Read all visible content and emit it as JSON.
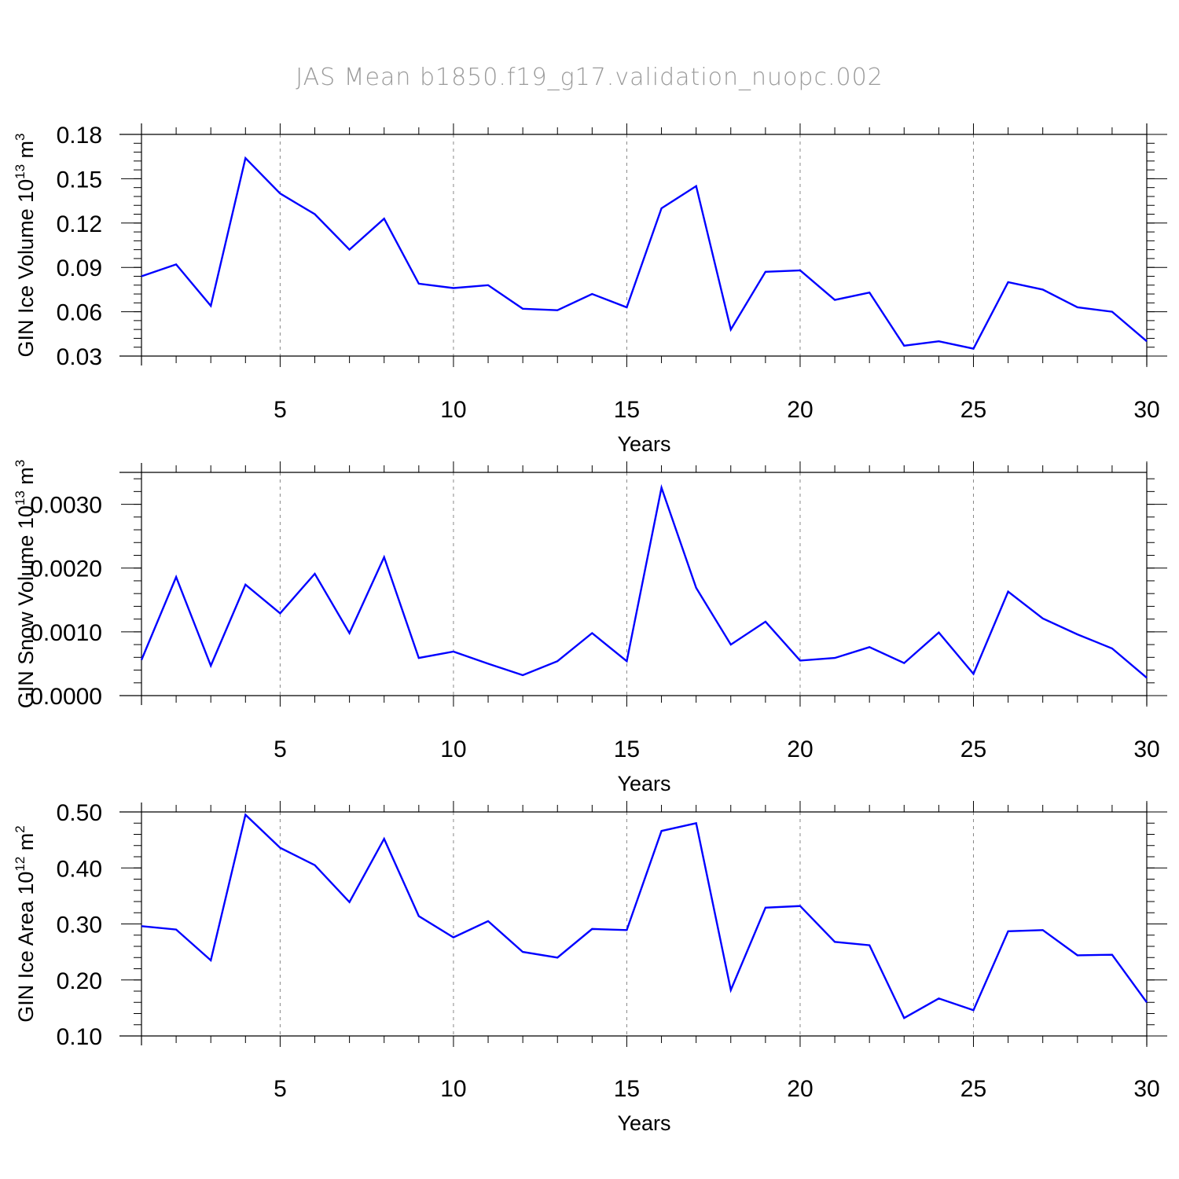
{
  "title": "JAS Mean b1850.f19_g17.validation_nuopc.002",
  "colors": {
    "line": "#0000ff",
    "axis": "#000000",
    "grid": "#888888",
    "title": "#9a9a9a"
  },
  "chart_data": [
    {
      "type": "line",
      "xlabel": "Years",
      "ylabel": {
        "text": "GIN Ice Volume 10",
        "sup": "13",
        "unit": " m",
        "unit_sup": "3"
      },
      "ylim": [
        0.03,
        0.18
      ],
      "yticks": [
        "0.03",
        "0.06",
        "0.09",
        "0.12",
        "0.15",
        "0.18"
      ],
      "ytick_values": [
        0.03,
        0.06,
        0.09,
        0.12,
        0.15,
        0.18
      ],
      "xlim": [
        1,
        30
      ],
      "xticks": [
        "5",
        "10",
        "15",
        "20",
        "25",
        "30"
      ],
      "xtick_values": [
        5,
        10,
        15,
        20,
        25,
        30
      ],
      "grid": "vertical dashed at major x ticks",
      "x": [
        1,
        2,
        3,
        4,
        5,
        6,
        7,
        8,
        9,
        10,
        11,
        12,
        13,
        14,
        15,
        16,
        17,
        18,
        19,
        20,
        21,
        22,
        23,
        24,
        25,
        26,
        27,
        28,
        29,
        30
      ],
      "series": [
        {
          "values": [
            0.084,
            0.092,
            0.064,
            0.164,
            0.14,
            0.126,
            0.102,
            0.123,
            0.079,
            0.076,
            0.078,
            0.062,
            0.061,
            0.072,
            0.063,
            0.13,
            0.145,
            0.048,
            0.087,
            0.088,
            0.068,
            0.073,
            0.037,
            0.04,
            0.035,
            0.08,
            0.075,
            0.063,
            0.06,
            0.04
          ]
        }
      ]
    },
    {
      "type": "line",
      "xlabel": "Years",
      "ylabel": {
        "text": "GIN Snow Volume 10",
        "sup": "13",
        "unit": " m",
        "unit_sup": "3"
      },
      "ylim": [
        0.0,
        0.0035
      ],
      "yticks": [
        "0.0000",
        "0.0010",
        "0.0020",
        "0.0030"
      ],
      "ytick_values": [
        0.0,
        0.001,
        0.002,
        0.003
      ],
      "xlim": [
        1,
        30
      ],
      "xticks": [
        "5",
        "10",
        "15",
        "20",
        "25",
        "30"
      ],
      "xtick_values": [
        5,
        10,
        15,
        20,
        25,
        30
      ],
      "grid": "vertical dashed at major x ticks",
      "x": [
        1,
        2,
        3,
        4,
        5,
        6,
        7,
        8,
        9,
        10,
        11,
        12,
        13,
        14,
        15,
        16,
        17,
        18,
        19,
        20,
        21,
        22,
        23,
        24,
        25,
        26,
        27,
        28,
        29,
        30
      ],
      "series": [
        {
          "values": [
            0.00056,
            0.00186,
            0.00047,
            0.00174,
            0.00129,
            0.00191,
            0.00098,
            0.00217,
            0.00059,
            0.00069,
            0.0005,
            0.00032,
            0.00054,
            0.00098,
            0.00054,
            0.00326,
            0.00169,
            0.0008,
            0.00116,
            0.00055,
            0.00059,
            0.00076,
            0.00051,
            0.00099,
            0.00034,
            0.00163,
            0.00121,
            0.00096,
            0.00074,
            0.00028
          ]
        }
      ]
    },
    {
      "type": "line",
      "xlabel": "Years",
      "ylabel": {
        "text": "GIN Ice Area 10",
        "sup": "12",
        "unit": " m",
        "unit_sup": "2"
      },
      "ylim": [
        0.1,
        0.5
      ],
      "yticks": [
        "0.10",
        "0.20",
        "0.30",
        "0.40",
        "0.50"
      ],
      "ytick_values": [
        0.1,
        0.2,
        0.3,
        0.4,
        0.5
      ],
      "xlim": [
        1,
        30
      ],
      "xticks": [
        "5",
        "10",
        "15",
        "20",
        "25",
        "30"
      ],
      "xtick_values": [
        5,
        10,
        15,
        20,
        25,
        30
      ],
      "grid": "vertical dashed at major x ticks",
      "x": [
        1,
        2,
        3,
        4,
        5,
        6,
        7,
        8,
        9,
        10,
        11,
        12,
        13,
        14,
        15,
        16,
        17,
        18,
        19,
        20,
        21,
        22,
        23,
        24,
        25,
        26,
        27,
        28,
        29,
        30
      ],
      "series": [
        {
          "values": [
            0.296,
            0.29,
            0.235,
            0.495,
            0.436,
            0.405,
            0.339,
            0.452,
            0.314,
            0.276,
            0.305,
            0.25,
            0.24,
            0.291,
            0.289,
            0.466,
            0.48,
            0.182,
            0.329,
            0.332,
            0.268,
            0.262,
            0.132,
            0.167,
            0.146,
            0.287,
            0.289,
            0.244,
            0.245,
            0.16
          ]
        }
      ]
    }
  ]
}
